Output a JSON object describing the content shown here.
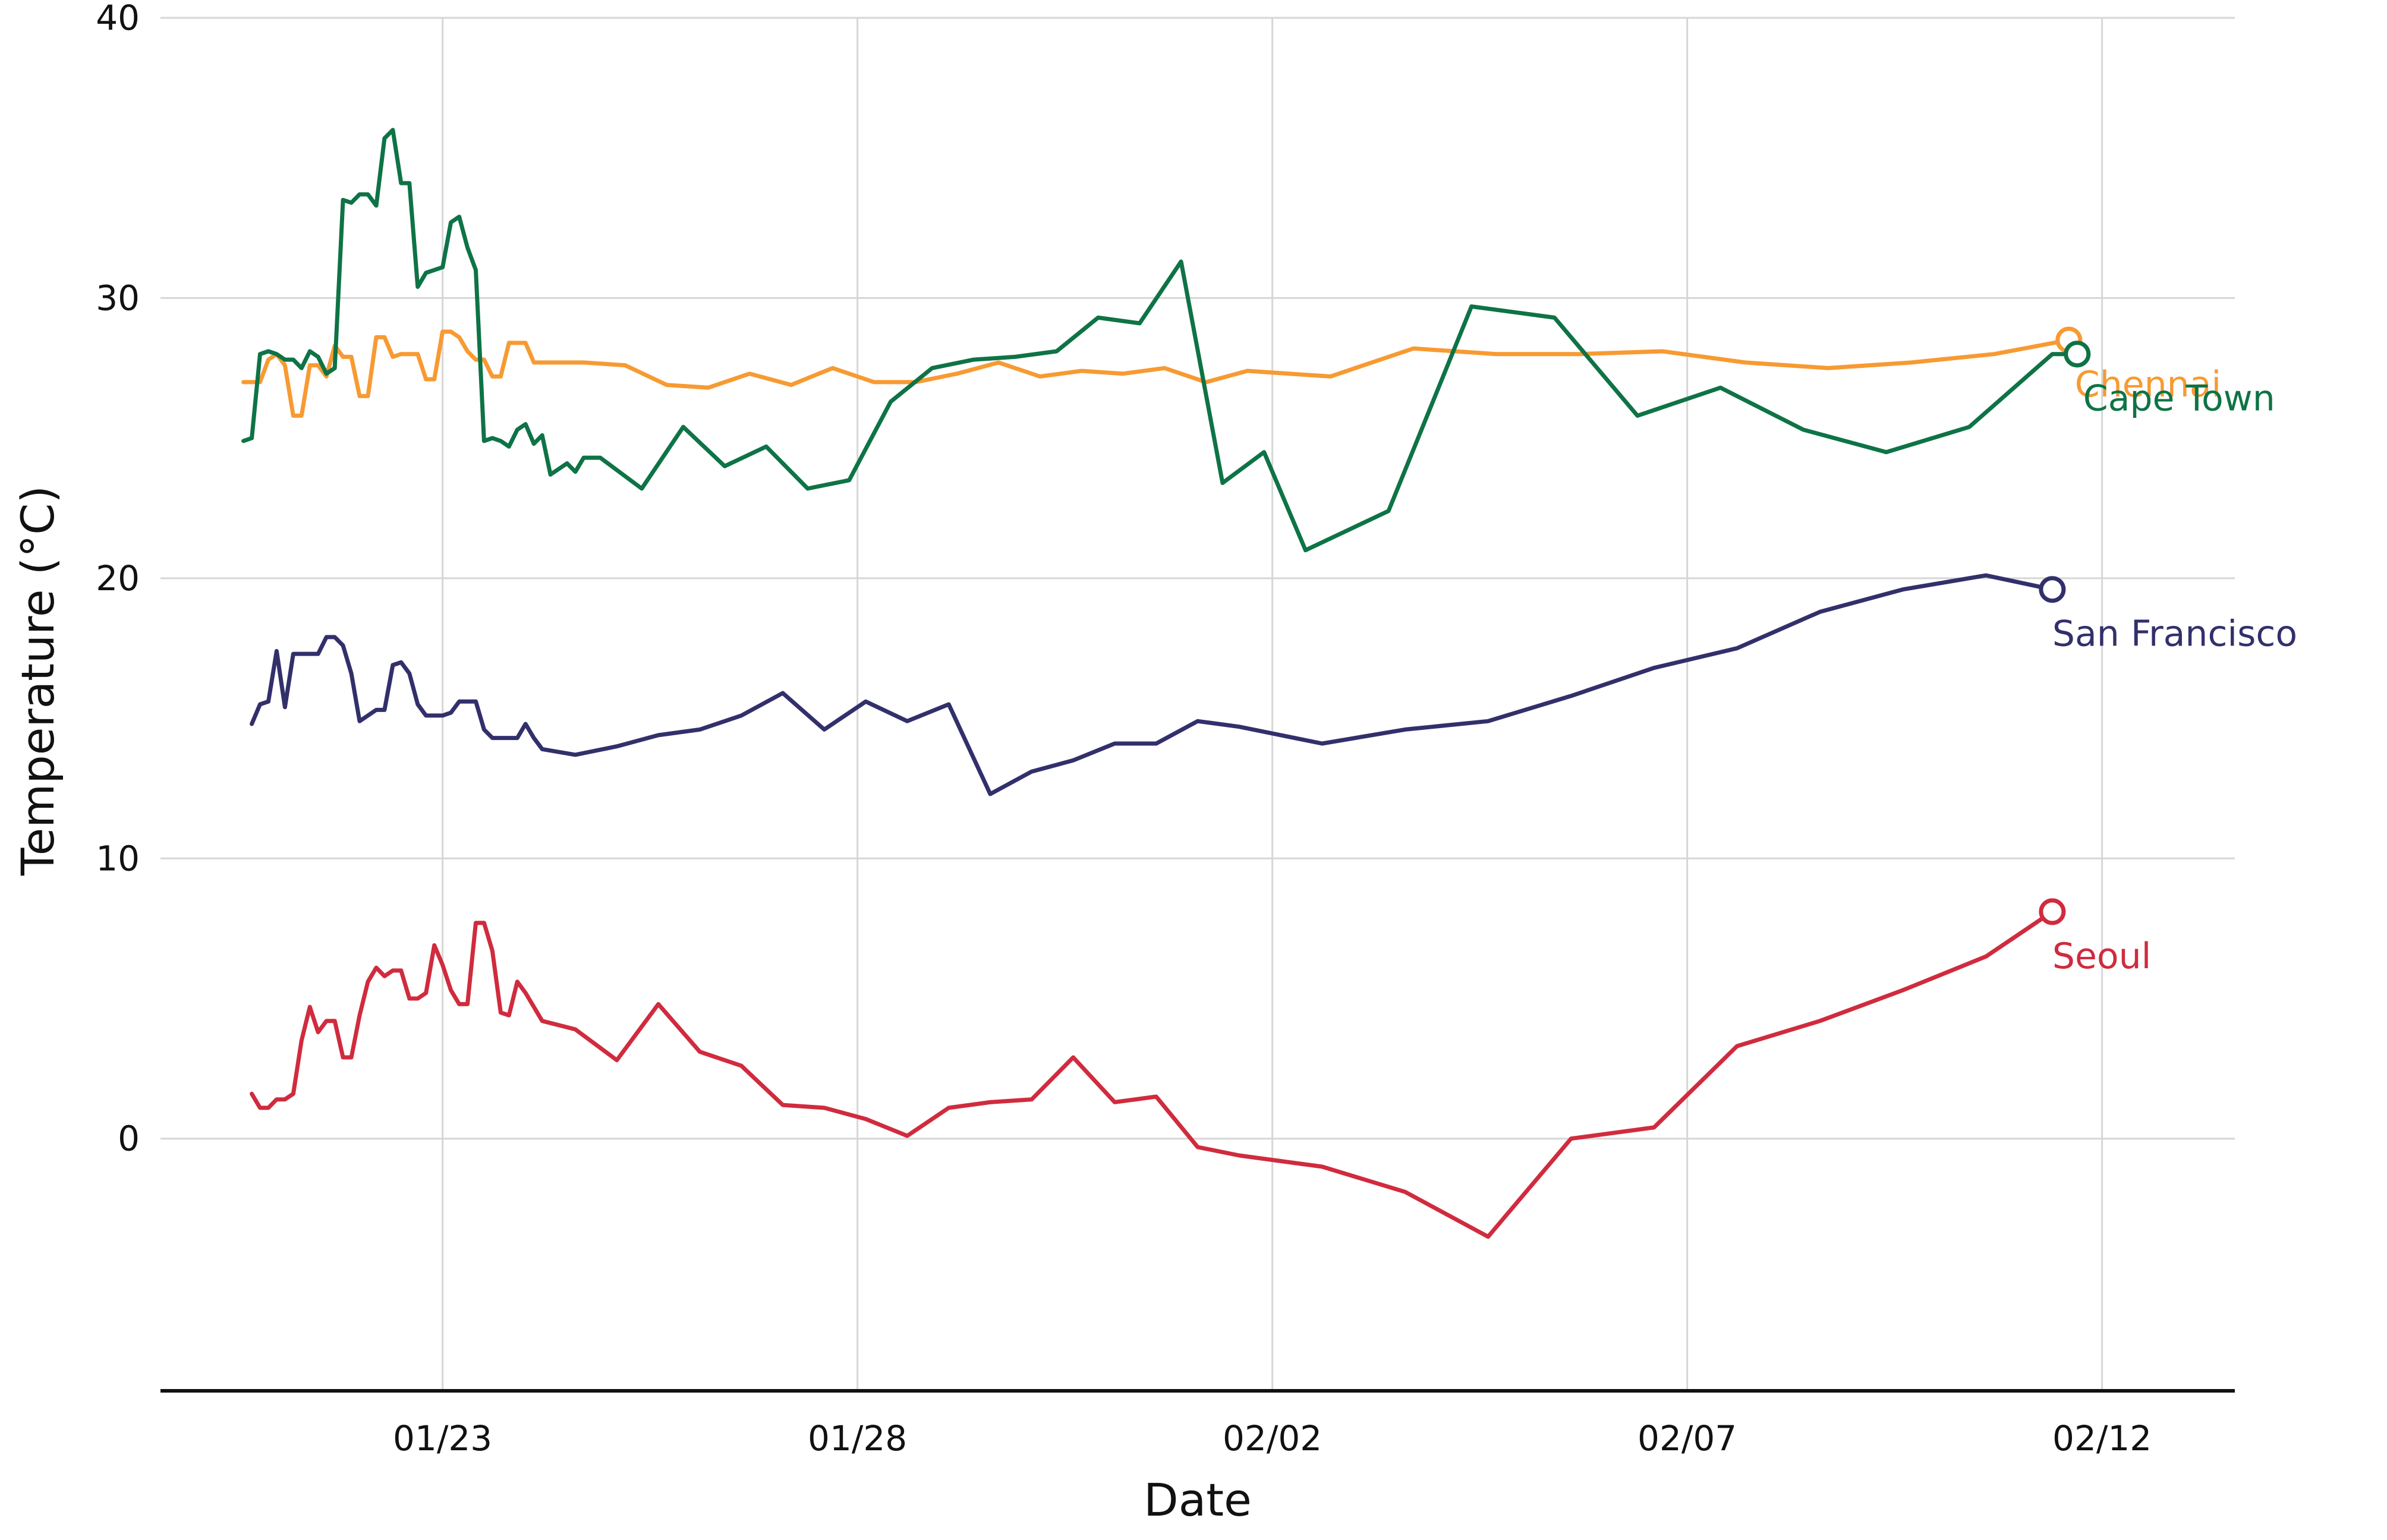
{
  "chart_data": {
    "type": "line",
    "title": "",
    "xlabel": "Date",
    "ylabel": "Temperature (°C)",
    "x_axis": {
      "type": "date",
      "ticks": [
        {
          "date": "01/23",
          "day": 23
        },
        {
          "date": "01/28",
          "day": 28
        },
        {
          "date": "02/02",
          "day": 33
        },
        {
          "date": "02/07",
          "day": 38
        },
        {
          "date": "02/12",
          "day": 43
        }
      ],
      "xlim": [
        19.6,
        44.6
      ]
    },
    "y_axis": {
      "ticks": [
        0,
        10,
        20,
        30,
        40
      ],
      "ylim": [
        -9,
        40
      ]
    },
    "grid": true,
    "legend": "direct labels at line ends",
    "series": [
      {
        "name": "Chennai",
        "color": "#f79a32",
        "x": [
          20.6,
          20.7,
          20.8,
          20.9,
          21.0,
          21.1,
          21.2,
          21.3,
          21.4,
          21.5,
          21.6,
          21.7,
          21.8,
          21.9,
          22.0,
          22.1,
          22.2,
          22.3,
          22.4,
          22.5,
          22.6,
          22.7,
          22.8,
          22.9,
          23.0,
          23.1,
          23.2,
          23.3,
          23.4,
          23.5,
          23.6,
          23.7,
          23.8,
          23.9,
          24.0,
          24.1,
          24.2,
          24.3,
          24.4,
          24.5,
          24.6,
          24.7,
          25.2,
          25.7,
          26.2,
          26.7,
          27.2,
          27.7,
          28.2,
          28.7,
          29.2,
          29.7,
          30.2,
          30.7,
          31.2,
          31.7,
          32.2,
          32.7,
          33.2,
          33.7,
          34.7,
          35.7,
          36.7,
          37.7,
          38.7,
          39.7,
          40.7,
          41.7,
          42.6
        ],
        "values": [
          27.0,
          27.0,
          27.0,
          27.8,
          28.0,
          27.6,
          25.8,
          25.8,
          27.6,
          27.6,
          27.2,
          28.3,
          27.9,
          27.9,
          26.5,
          26.5,
          28.6,
          28.6,
          27.9,
          28.0,
          28.0,
          28.0,
          27.1,
          27.1,
          28.8,
          28.8,
          28.6,
          28.1,
          27.8,
          27.8,
          27.2,
          27.2,
          28.4,
          28.4,
          28.4,
          27.7,
          27.7,
          27.7,
          27.7,
          27.7,
          27.7,
          27.7,
          27.6,
          26.9,
          26.8,
          27.3,
          26.9,
          27.5,
          27.0,
          27.0,
          27.3,
          27.7,
          27.2,
          27.4,
          27.3,
          27.5,
          27.0,
          27.4,
          27.3,
          27.2,
          28.2,
          28.0,
          28.0,
          28.1,
          27.7,
          27.5,
          27.7,
          28.0,
          28.5
        ]
      },
      {
        "name": "Cape Town",
        "color": "#0e7346",
        "x": [
          20.6,
          20.7,
          20.8,
          20.9,
          21.0,
          21.1,
          21.2,
          21.3,
          21.4,
          21.5,
          21.6,
          21.7,
          21.8,
          21.9,
          22.0,
          22.1,
          22.2,
          22.3,
          22.4,
          22.5,
          22.6,
          22.7,
          22.8,
          22.9,
          23.0,
          23.1,
          23.2,
          23.3,
          23.4,
          23.5,
          23.6,
          23.7,
          23.8,
          23.9,
          24.0,
          24.1,
          24.2,
          24.3,
          24.4,
          24.5,
          24.6,
          24.7,
          24.9,
          25.4,
          25.9,
          26.4,
          26.9,
          27.4,
          27.9,
          28.4,
          28.9,
          29.4,
          29.9,
          30.4,
          30.9,
          31.4,
          31.9,
          32.4,
          32.9,
          33.4,
          34.4,
          35.4,
          36.4,
          37.4,
          38.4,
          39.4,
          40.4,
          41.4,
          42.4,
          42.7
        ],
        "values": [
          24.9,
          25.0,
          28.0,
          28.1,
          28.0,
          27.8,
          27.8,
          27.5,
          28.1,
          27.9,
          27.3,
          27.5,
          33.5,
          33.4,
          33.7,
          33.7,
          33.3,
          35.7,
          36.0,
          34.1,
          34.1,
          30.4,
          30.9,
          31.0,
          31.1,
          32.7,
          32.9,
          31.8,
          31.0,
          24.9,
          25.0,
          24.9,
          24.7,
          25.3,
          25.5,
          24.8,
          25.1,
          23.7,
          23.9,
          24.1,
          23.8,
          24.3,
          24.3,
          23.2,
          25.4,
          24.0,
          24.7,
          23.2,
          23.5,
          26.3,
          27.5,
          27.8,
          27.9,
          28.1,
          29.3,
          29.1,
          31.3,
          23.4,
          24.5,
          21.0,
          22.4,
          29.7,
          29.3,
          25.8,
          26.8,
          25.3,
          24.5,
          25.4,
          28.0,
          28.0
        ]
      },
      {
        "name": "San Francisco",
        "color": "#32306b",
        "x": [
          20.7,
          20.8,
          20.9,
          21.0,
          21.1,
          21.2,
          21.3,
          21.4,
          21.5,
          21.6,
          21.7,
          21.8,
          21.9,
          22.0,
          22.1,
          22.2,
          22.3,
          22.4,
          22.5,
          22.6,
          22.7,
          22.8,
          22.9,
          23.0,
          23.1,
          23.2,
          23.3,
          23.4,
          23.5,
          23.6,
          23.7,
          23.8,
          23.9,
          24.0,
          24.1,
          24.2,
          24.6,
          25.1,
          25.6,
          26.1,
          26.6,
          27.1,
          27.6,
          28.1,
          28.6,
          29.1,
          29.6,
          30.1,
          30.6,
          31.1,
          31.6,
          32.1,
          32.6,
          33.6,
          34.6,
          35.6,
          36.6,
          37.6,
          38.6,
          39.6,
          40.6,
          41.6,
          42.4
        ],
        "values": [
          14.8,
          15.5,
          15.6,
          17.4,
          15.4,
          17.3,
          17.3,
          17.3,
          17.3,
          17.9,
          17.9,
          17.6,
          16.6,
          14.9,
          15.1,
          15.3,
          15.3,
          16.9,
          17.0,
          16.6,
          15.5,
          15.1,
          15.1,
          15.1,
          15.2,
          15.6,
          15.6,
          15.6,
          14.6,
          14.3,
          14.3,
          14.3,
          14.3,
          14.8,
          14.3,
          13.9,
          13.7,
          14.0,
          14.4,
          14.6,
          15.1,
          15.9,
          14.6,
          15.6,
          14.9,
          15.5,
          12.3,
          13.1,
          13.5,
          14.1,
          14.1,
          14.9,
          14.7,
          14.1,
          14.6,
          14.9,
          15.8,
          16.8,
          17.5,
          18.8,
          19.6,
          20.1,
          19.6
        ]
      },
      {
        "name": "Seoul",
        "color": "#d02b3e",
        "x": [
          20.7,
          20.8,
          20.9,
          21.0,
          21.1,
          21.2,
          21.3,
          21.4,
          21.5,
          21.6,
          21.7,
          21.8,
          21.9,
          22.0,
          22.1,
          22.2,
          22.3,
          22.4,
          22.5,
          22.6,
          22.7,
          22.8,
          22.9,
          23.0,
          23.1,
          23.2,
          23.3,
          23.4,
          23.5,
          23.6,
          23.7,
          23.8,
          23.9,
          24.0,
          24.1,
          24.2,
          24.6,
          25.1,
          25.6,
          26.1,
          26.6,
          27.1,
          27.6,
          28.1,
          28.6,
          29.1,
          29.6,
          30.1,
          30.6,
          31.1,
          31.6,
          32.1,
          32.6,
          33.6,
          34.6,
          35.6,
          36.6,
          37.6,
          38.6,
          39.6,
          40.6,
          41.6,
          42.4
        ],
        "values": [
          1.6,
          1.1,
          1.1,
          1.4,
          1.4,
          1.6,
          3.5,
          4.7,
          3.8,
          4.2,
          4.2,
          2.9,
          2.9,
          4.4,
          5.6,
          6.1,
          5.8,
          6.0,
          6.0,
          5.0,
          5.0,
          5.2,
          6.9,
          6.2,
          5.3,
          4.8,
          4.8,
          7.7,
          7.7,
          6.7,
          4.5,
          4.4,
          5.6,
          5.2,
          4.7,
          4.2,
          3.9,
          2.8,
          4.8,
          3.1,
          2.6,
          1.2,
          1.1,
          0.7,
          0.1,
          1.1,
          1.3,
          1.4,
          2.9,
          1.3,
          1.5,
          -0.3,
          -0.6,
          -1.0,
          -1.9,
          -3.5,
          0.0,
          0.4,
          3.3,
          4.2,
          5.3,
          6.5,
          8.1
        ]
      }
    ]
  }
}
